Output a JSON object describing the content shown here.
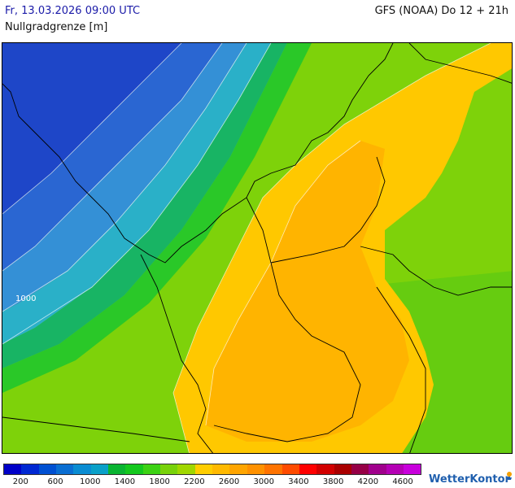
{
  "header": {
    "date": "Fr, 13.03.2026 09:00 UTC",
    "title": "Nullgradgrenze [m]",
    "model": "GFS (NOAA) Do 12 + 21h"
  },
  "map": {
    "contour_label": "1000"
  },
  "legend": {
    "colors": [
      "#0000c8",
      "#0028d2",
      "#0050d2",
      "#0a6ed2",
      "#0a8cd2",
      "#0aa0c8",
      "#0ab432",
      "#14c81e",
      "#3cd214",
      "#78d20a",
      "#a0d700",
      "#ffcd00",
      "#ffb900",
      "#ffa500",
      "#ff9100",
      "#ff7300",
      "#ff4b00",
      "#ff0000",
      "#d20000",
      "#aa0000",
      "#960046",
      "#a0008c",
      "#b400b4",
      "#c800dc"
    ],
    "ticks": [
      "200",
      "600",
      "1000",
      "1400",
      "1800",
      "2200",
      "2600",
      "3000",
      "3400",
      "3800",
      "4200",
      "4600"
    ]
  },
  "brand": {
    "logo_text": "WetterKontor",
    "logo_icon": "sun-icon",
    "accent": "#1f5fae"
  }
}
